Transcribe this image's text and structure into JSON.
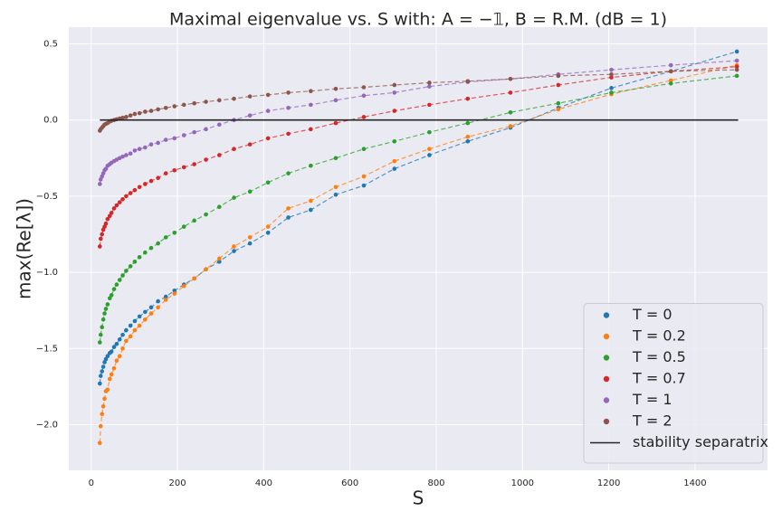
{
  "chart_data": {
    "type": "line",
    "title": "Maximal eigenvalue vs. S   with:  A = −𝟙, B = R.M. (dB = 1)",
    "xlabel": "S",
    "ylabel": "max(Re[λ])",
    "xlim": [
      -52,
      1568
    ],
    "ylim": [
      -2.3,
      0.61
    ],
    "xticks": [
      0,
      200,
      400,
      600,
      800,
      1000,
      1200,
      1400
    ],
    "yticks": [
      0.5,
      {
        "value": 0,
        "label": "0.0"
      },
      {
        "value": -0.5,
        "label": "−0.5"
      },
      {
        "value": -1.0,
        "label": "−1.0"
      },
      {
        "value": -1.5,
        "label": "−1.5"
      },
      {
        "value": -2.0,
        "label": "−2.0"
      }
    ],
    "grid": true,
    "legend": "lower right",
    "series": [
      {
        "name": "T = 0",
        "color": "#1f77b4",
        "marker": true,
        "x": [
          20,
          22,
          25,
          28,
          31,
          34,
          38,
          43,
          47,
          53,
          59,
          66,
          73,
          81,
          91,
          101,
          112,
          125,
          139,
          155,
          173,
          193,
          215,
          239,
          266,
          297,
          331,
          368,
          410,
          457,
          509,
          567,
          632,
          703,
          784,
          873,
          972,
          1083,
          1206,
          1344,
          1497
        ],
        "values": [
          -1.73,
          -1.68,
          -1.65,
          -1.62,
          -1.59,
          -1.57,
          -1.55,
          -1.53,
          -1.52,
          -1.49,
          -1.47,
          -1.44,
          -1.41,
          -1.38,
          -1.35,
          -1.32,
          -1.29,
          -1.26,
          -1.23,
          -1.19,
          -1.16,
          -1.12,
          -1.08,
          -1.04,
          -0.98,
          -0.93,
          -0.86,
          -0.81,
          -0.74,
          -0.64,
          -0.59,
          -0.49,
          -0.43,
          -0.32,
          -0.23,
          -0.14,
          -0.05,
          0.08,
          0.21,
          0.32,
          0.45
        ]
      },
      {
        "name": "T = 0.2",
        "color": "#ff7f0e",
        "marker": true,
        "x": [
          20,
          22,
          25,
          28,
          31,
          34,
          38,
          43,
          47,
          53,
          59,
          66,
          73,
          81,
          91,
          101,
          112,
          125,
          139,
          155,
          173,
          193,
          215,
          239,
          266,
          297,
          331,
          368,
          410,
          457,
          509,
          567,
          632,
          703,
          784,
          873,
          972,
          1083,
          1206,
          1344,
          1497
        ],
        "values": [
          -2.12,
          -2.01,
          -1.93,
          -1.88,
          -1.83,
          -1.78,
          -1.77,
          -1.7,
          -1.67,
          -1.63,
          -1.58,
          -1.55,
          -1.5,
          -1.45,
          -1.42,
          -1.38,
          -1.35,
          -1.31,
          -1.27,
          -1.23,
          -1.18,
          -1.14,
          -1.09,
          -1.04,
          -0.98,
          -0.91,
          -0.83,
          -0.77,
          -0.7,
          -0.58,
          -0.53,
          -0.44,
          -0.37,
          -0.27,
          -0.19,
          -0.11,
          -0.04,
          0.07,
          0.17,
          0.26,
          0.36
        ]
      },
      {
        "name": "T = 0.5",
        "color": "#2ca02c",
        "marker": true,
        "x": [
          20,
          22,
          25,
          28,
          31,
          34,
          38,
          43,
          47,
          53,
          59,
          66,
          73,
          81,
          91,
          101,
          112,
          125,
          139,
          155,
          173,
          193,
          215,
          239,
          266,
          297,
          331,
          368,
          410,
          457,
          509,
          567,
          632,
          703,
          784,
          873,
          972,
          1083,
          1206,
          1344,
          1497
        ],
        "values": [
          -1.46,
          -1.41,
          -1.36,
          -1.31,
          -1.27,
          -1.24,
          -1.21,
          -1.17,
          -1.15,
          -1.11,
          -1.08,
          -1.05,
          -1.02,
          -0.99,
          -0.96,
          -0.93,
          -0.9,
          -0.87,
          -0.84,
          -0.81,
          -0.77,
          -0.74,
          -0.7,
          -0.66,
          -0.62,
          -0.57,
          -0.51,
          -0.47,
          -0.41,
          -0.35,
          -0.3,
          -0.25,
          -0.19,
          -0.14,
          -0.08,
          -0.02,
          0.05,
          0.11,
          0.18,
          0.24,
          0.29
        ]
      },
      {
        "name": "T = 0.7",
        "color": "#d62728",
        "marker": true,
        "x": [
          20,
          22,
          25,
          28,
          31,
          34,
          38,
          43,
          47,
          53,
          59,
          66,
          73,
          81,
          91,
          101,
          112,
          125,
          139,
          155,
          173,
          193,
          215,
          239,
          266,
          297,
          331,
          368,
          410,
          457,
          509,
          567,
          632,
          703,
          784,
          873,
          972,
          1083,
          1206,
          1344,
          1497
        ],
        "values": [
          -0.83,
          -0.78,
          -0.75,
          -0.72,
          -0.7,
          -0.68,
          -0.65,
          -0.63,
          -0.61,
          -0.58,
          -0.56,
          -0.54,
          -0.52,
          -0.5,
          -0.48,
          -0.46,
          -0.44,
          -0.42,
          -0.4,
          -0.38,
          -0.35,
          -0.33,
          -0.31,
          -0.29,
          -0.26,
          -0.23,
          -0.19,
          -0.16,
          -0.12,
          -0.09,
          -0.06,
          -0.02,
          0.02,
          0.06,
          0.1,
          0.14,
          0.18,
          0.23,
          0.28,
          0.32,
          0.35
        ]
      },
      {
        "name": "T = 1",
        "color": "#9467bd",
        "marker": true,
        "x": [
          20,
          22,
          25,
          28,
          31,
          34,
          38,
          43,
          47,
          53,
          59,
          66,
          73,
          81,
          91,
          101,
          112,
          125,
          139,
          155,
          173,
          193,
          215,
          239,
          266,
          297,
          331,
          368,
          410,
          457,
          509,
          567,
          632,
          703,
          784,
          873,
          972,
          1083,
          1206,
          1344,
          1497
        ],
        "values": [
          -0.42,
          -0.39,
          -0.37,
          -0.35,
          -0.33,
          -0.32,
          -0.3,
          -0.29,
          -0.28,
          -0.27,
          -0.26,
          -0.25,
          -0.24,
          -0.23,
          -0.22,
          -0.2,
          -0.19,
          -0.18,
          -0.16,
          -0.15,
          -0.13,
          -0.12,
          -0.1,
          -0.08,
          -0.06,
          -0.03,
          0.0,
          0.03,
          0.06,
          0.08,
          0.1,
          0.13,
          0.16,
          0.18,
          0.22,
          0.25,
          0.27,
          0.3,
          0.33,
          0.36,
          0.39
        ]
      },
      {
        "name": "T = 2",
        "color": "#8c564b",
        "marker": true,
        "x": [
          20,
          22,
          25,
          28,
          31,
          34,
          38,
          43,
          47,
          53,
          59,
          66,
          73,
          81,
          91,
          101,
          112,
          125,
          139,
          155,
          173,
          193,
          215,
          239,
          266,
          297,
          331,
          368,
          410,
          457,
          509,
          567,
          632,
          703,
          784,
          873,
          972,
          1083,
          1206,
          1344,
          1497
        ],
        "values": [
          -0.07,
          -0.06,
          -0.05,
          -0.04,
          -0.03,
          -0.025,
          -0.02,
          -0.01,
          -0.005,
          0.0,
          0.005,
          0.01,
          0.015,
          0.02,
          0.03,
          0.04,
          0.045,
          0.055,
          0.06,
          0.07,
          0.08,
          0.09,
          0.1,
          0.11,
          0.12,
          0.13,
          0.14,
          0.155,
          0.165,
          0.18,
          0.19,
          0.205,
          0.215,
          0.23,
          0.245,
          0.255,
          0.27,
          0.29,
          0.3,
          0.32,
          0.33
        ]
      },
      {
        "name": "stability separatrix",
        "color": "#262626",
        "marker": false,
        "x": [
          20,
          1500
        ],
        "values": [
          0,
          0
        ]
      }
    ]
  }
}
